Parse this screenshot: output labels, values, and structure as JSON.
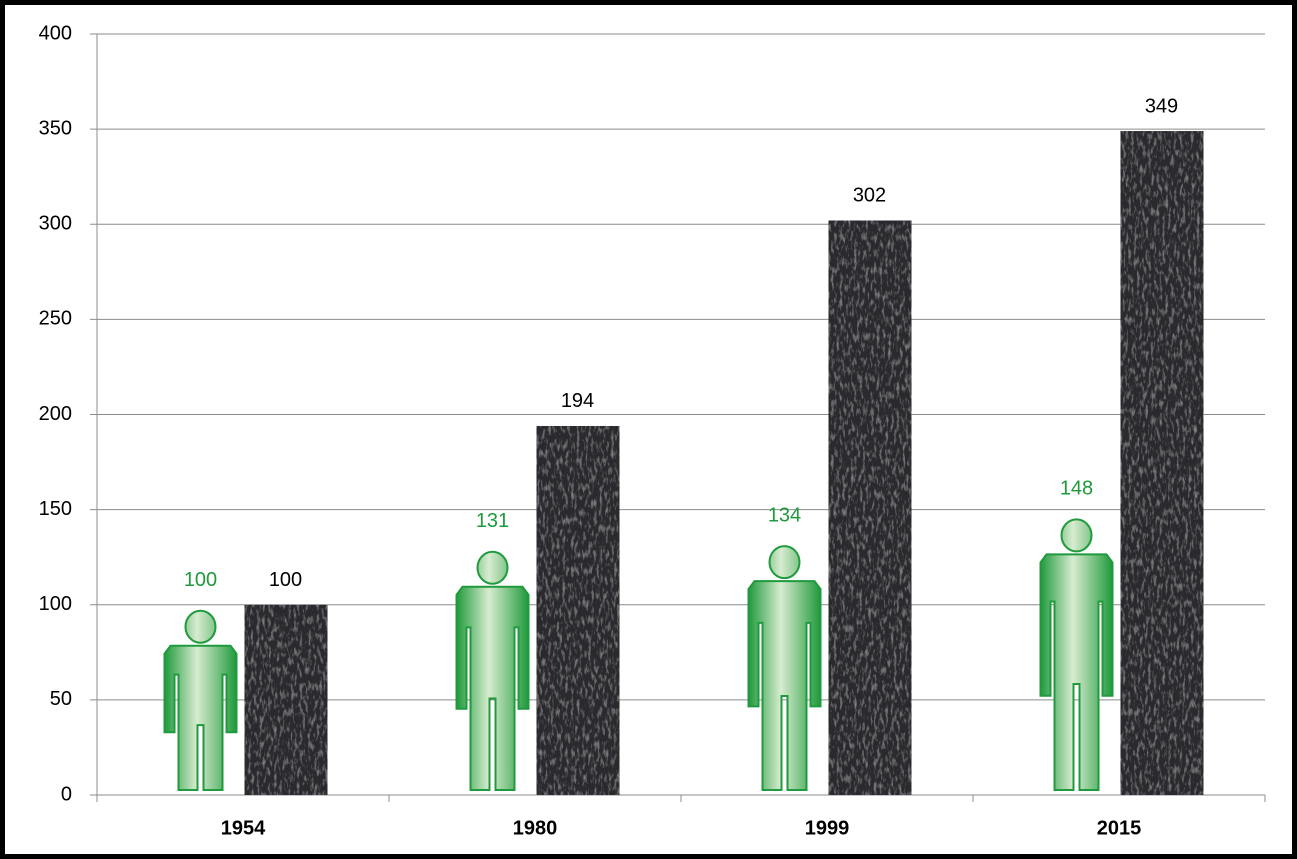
{
  "chart_data": {
    "type": "bar",
    "categories": [
      "1954",
      "1980",
      "1999",
      "2015"
    ],
    "series": [
      {
        "color": "#1f9a3c",
        "marker": "person",
        "values": [
          100,
          131,
          134,
          148
        ]
      },
      {
        "color": "#000000",
        "marker": "texture",
        "values": [
          100,
          194,
          302,
          349
        ]
      }
    ],
    "ylim": [
      0,
      400
    ],
    "yticks": [
      0,
      50,
      100,
      150,
      200,
      250,
      300,
      350,
      400
    ],
    "grid": true
  }
}
